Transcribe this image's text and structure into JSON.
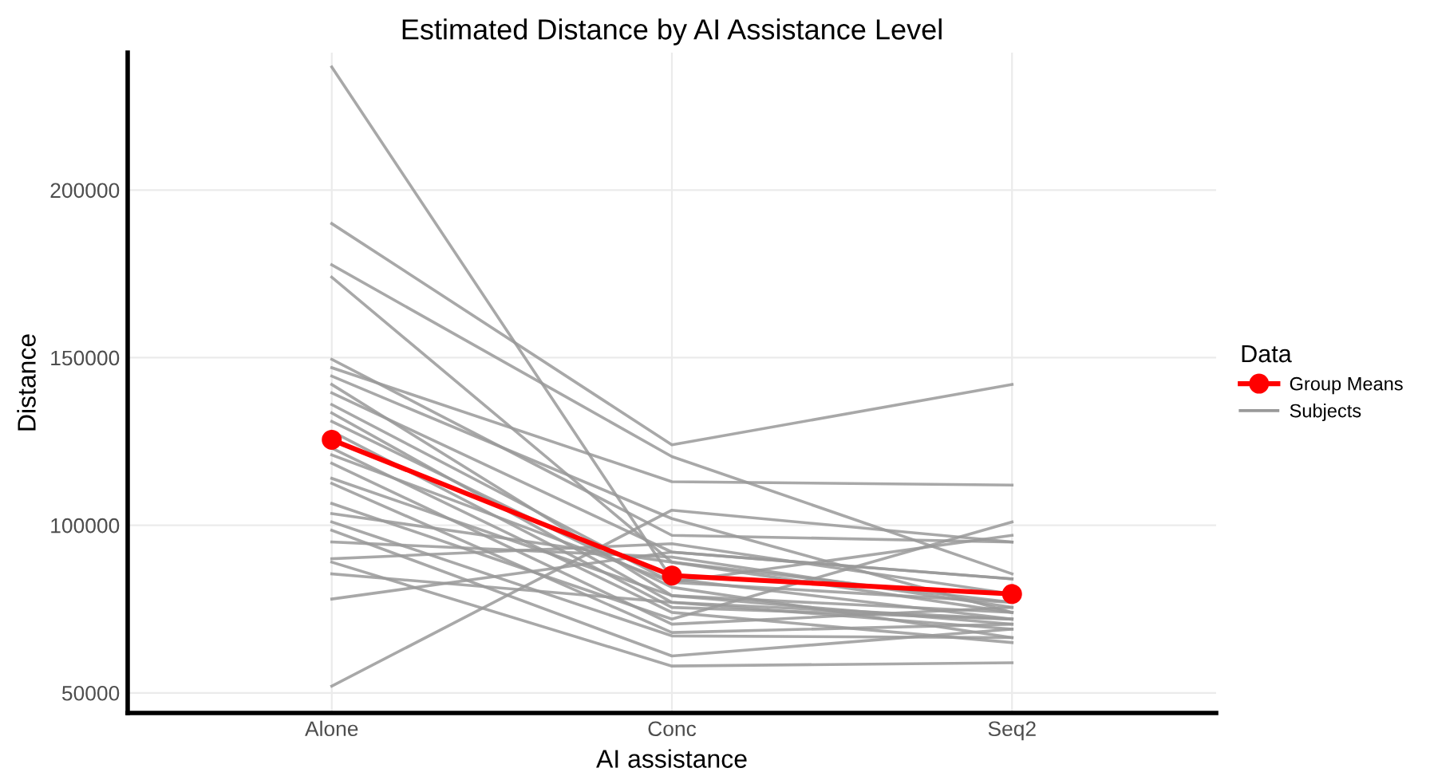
{
  "chart_data": {
    "type": "line",
    "title": "Estimated Distance by AI Assistance Level",
    "xlabel": "AI assistance",
    "ylabel": "Distance",
    "legend_title": "Data",
    "categories": [
      "Alone",
      "Conc",
      "Seq2"
    ],
    "ylim": [
      44000,
      241000
    ],
    "yticks": [
      50000,
      100000,
      150000,
      200000
    ],
    "grid": true,
    "legend": "right",
    "line_style": "solid",
    "series": [
      {
        "name": "Group Means",
        "color": "#ff0000",
        "marker": "circle",
        "values": [
          125500,
          85000,
          79500
        ]
      },
      {
        "name": "Subjects",
        "color": "#999999",
        "values": [
          236700,
          84000,
          72000
        ]
      },
      {
        "color": "#999999",
        "values": [
          190000,
          124000,
          142000
        ]
      },
      {
        "color": "#999999",
        "values": [
          177700,
          120500,
          85500
        ]
      },
      {
        "color": "#999999",
        "values": [
          174000,
          89000,
          77000
        ]
      },
      {
        "color": "#999999",
        "values": [
          149500,
          97000,
          95000
        ]
      },
      {
        "color": "#999999",
        "values": [
          147000,
          113000,
          112000
        ]
      },
      {
        "color": "#999999",
        "values": [
          144500,
          102000,
          74000
        ]
      },
      {
        "color": "#999999",
        "values": [
          142000,
          79000,
          70500
        ]
      },
      {
        "color": "#999999",
        "values": [
          139500,
          92000,
          84000
        ]
      },
      {
        "color": "#999999",
        "values": [
          136000,
          83000,
          97000
        ]
      },
      {
        "color": "#999999",
        "values": [
          133500,
          77000,
          69000
        ]
      },
      {
        "color": "#999999",
        "values": [
          131000,
          81500,
          66500
        ]
      },
      {
        "color": "#999999",
        "values": [
          128000,
          75500,
          72000
        ]
      },
      {
        "color": "#999999",
        "values": [
          123000,
          74000,
          65000
        ]
      },
      {
        "color": "#999999",
        "values": [
          121000,
          83000,
          77000
        ]
      },
      {
        "color": "#999999",
        "values": [
          118500,
          70500,
          75500
        ]
      },
      {
        "color": "#999999",
        "values": [
          114000,
          79000,
          74000
        ]
      },
      {
        "color": "#999999",
        "values": [
          112500,
          68000,
          70500
        ]
      },
      {
        "color": "#999999",
        "values": [
          106500,
          72000,
          101000
        ]
      },
      {
        "color": "#999999",
        "values": [
          103500,
          89000,
          74000
        ]
      },
      {
        "color": "#999999",
        "values": [
          101000,
          67000,
          66500
        ]
      },
      {
        "color": "#999999",
        "values": [
          98500,
          61000,
          69000
        ]
      },
      {
        "color": "#999999",
        "values": [
          95000,
          90500,
          75500
        ]
      },
      {
        "color": "#999999",
        "values": [
          90000,
          94500,
          79500
        ]
      },
      {
        "color": "#999999",
        "values": [
          89000,
          58000,
          59000
        ]
      },
      {
        "color": "#999999",
        "values": [
          85500,
          77000,
          72000
        ]
      },
      {
        "color": "#999999",
        "values": [
          78000,
          92000,
          84000
        ]
      },
      {
        "color": "#999999",
        "values": [
          52000,
          104500,
          95000
        ]
      }
    ]
  }
}
